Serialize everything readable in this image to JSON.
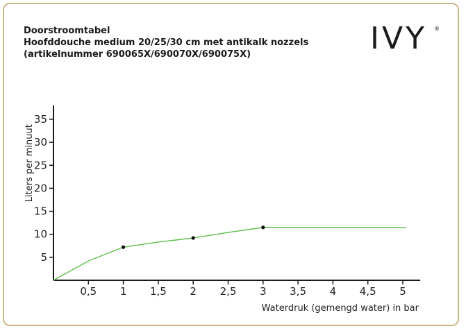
{
  "header": {
    "line1": "Doorstroomtabel",
    "line2": "Hoofddouche medium 20/25/30 cm met antikalk nozzels",
    "line3": "(artikelnummer 690065X/690070X/690075X)"
  },
  "logo": {
    "text": "IVY",
    "mark": "®"
  },
  "colors": {
    "line": "#5cbf4a",
    "border": "#c9b98a",
    "axis": "#1a1a1a"
  },
  "chart_data": {
    "type": "line",
    "xlabel": "Waterdruk (gemengd water) in bar",
    "ylabel": "Liters per minuut",
    "xlim": [
      0,
      5.25
    ],
    "ylim": [
      0,
      38
    ],
    "x_ticks": [
      0.5,
      1,
      1.5,
      2,
      2.5,
      3,
      3.5,
      4,
      4.5,
      5
    ],
    "x_tick_labels": [
      "0,5",
      "1",
      "1,5",
      "2",
      "2,5",
      "3",
      "3,5",
      "4",
      "4,5",
      "5"
    ],
    "y_ticks": [
      5,
      10,
      15,
      20,
      25,
      30,
      35
    ],
    "y_tick_labels": [
      "5",
      "10",
      "15",
      "20",
      "25",
      "30",
      "35"
    ],
    "grid": false,
    "series": [
      {
        "x": [
          0,
          0.5,
          1,
          1.5,
          2,
          2.5,
          3,
          3.5,
          4,
          4.5,
          5.05
        ],
        "y": [
          0,
          4.2,
          7.2,
          8.3,
          9.2,
          10.4,
          11.5,
          11.5,
          11.5,
          11.5,
          11.5
        ],
        "markers": [
          {
            "x": 1,
            "y": 7.2
          },
          {
            "x": 2,
            "y": 9.2
          },
          {
            "x": 3,
            "y": 11.5
          }
        ]
      }
    ]
  }
}
